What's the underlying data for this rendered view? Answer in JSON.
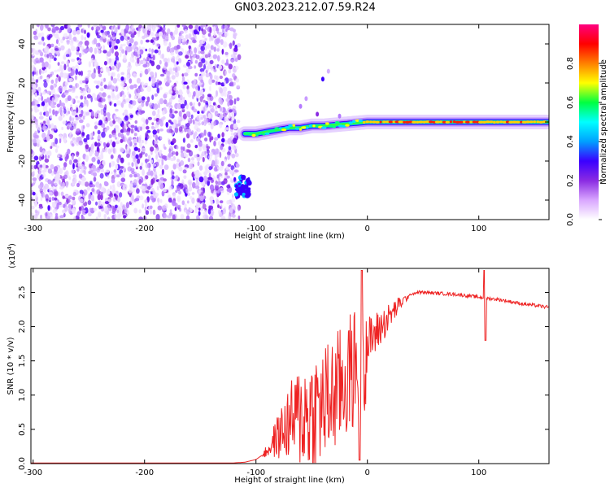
{
  "title": "GN03.2023.212.07.59.R24",
  "chart_data": [
    {
      "type": "heatmap",
      "xlabel": "Height of straight line (km)",
      "ylabel": "Frequency (Hz)",
      "xlim": [
        -302,
        163
      ],
      "ylim": [
        -50,
        50
      ],
      "x_ticks": [
        -300,
        -200,
        -100,
        0,
        100
      ],
      "x_tick_labels": [
        "-300",
        "-200",
        "-100",
        "0",
        "100"
      ],
      "y_ticks": [
        -40,
        -20,
        0,
        20,
        40
      ],
      "y_tick_labels": [
        "-40",
        "-20",
        "0",
        "20",
        "40"
      ],
      "colorbar": {
        "label": "Normalized spectral amplitude",
        "range": [
          0,
          1
        ],
        "ticks": [
          0.0,
          0.2,
          0.4,
          0.6,
          0.8
        ],
        "tick_labels": [
          "0.0",
          "0.2",
          "0.4",
          "0.6",
          "0.8"
        ],
        "colors": [
          "#ffffff",
          "#d9a6ff",
          "#8a2be2",
          "#3a00ff",
          "#00a0ff",
          "#00ffff",
          "#00ff40",
          "#ffff00",
          "#ff8000",
          "#ff0000",
          "#ff0080"
        ]
      },
      "noise_region_x": [
        -302,
        -115
      ],
      "signal_track": [
        {
          "x": -110,
          "y": -6
        },
        {
          "x": -100,
          "y": -6
        },
        {
          "x": -90,
          "y": -5
        },
        {
          "x": -80,
          "y": -4
        },
        {
          "x": -70,
          "y": -3
        },
        {
          "x": -60,
          "y": -3
        },
        {
          "x": -50,
          "y": -2
        },
        {
          "x": -40,
          "y": -2
        },
        {
          "x": -30,
          "y": -1.5
        },
        {
          "x": -20,
          "y": -1
        },
        {
          "x": -10,
          "y": -0.5
        },
        {
          "x": 0,
          "y": 0
        },
        {
          "x": 50,
          "y": 0
        },
        {
          "x": 100,
          "y": 0
        },
        {
          "x": 163,
          "y": 0
        }
      ]
    },
    {
      "type": "line",
      "xlabel": "Height of straight line (km)",
      "ylabel": "SNR (10 * v/v)",
      "y_multiplier": "(x10",
      "y_multiplier_exp": "4",
      "xlim": [
        -302,
        163
      ],
      "ylim": [
        0,
        2.85
      ],
      "x_ticks": [
        -300,
        -200,
        -100,
        0,
        100
      ],
      "x_tick_labels": [
        "-300",
        "-200",
        "-100",
        "0",
        "100"
      ],
      "y_ticks": [
        0,
        0.5,
        1.0,
        1.5,
        2.0,
        2.5
      ],
      "y_tick_labels": [
        "0.0",
        "0.5",
        "1.0",
        "1.5",
        "2.0",
        "2.5"
      ],
      "series": [
        {
          "color": "#ee2222",
          "points": [
            [
              -302,
              0.01
            ],
            [
              -250,
              0.01
            ],
            [
              -200,
              0.01
            ],
            [
              -150,
              0.01
            ],
            [
              -120,
              0.01
            ],
            [
              -110,
              0.02
            ],
            [
              -100,
              0.06
            ],
            [
              -92,
              0.15
            ],
            [
              -85,
              0.3
            ],
            [
              -80,
              0.4
            ],
            [
              -75,
              0.5
            ],
            [
              -70,
              0.6
            ],
            [
              -60,
              0.7
            ],
            [
              -50,
              0.75
            ],
            [
              -40,
              0.85
            ],
            [
              -30,
              1.0
            ],
            [
              -20,
              1.2
            ],
            [
              -10,
              1.45
            ],
            [
              -5,
              1.6
            ],
            [
              0,
              1.75
            ],
            [
              10,
              1.95
            ],
            [
              20,
              2.15
            ],
            [
              30,
              2.35
            ],
            [
              40,
              2.48
            ],
            [
              45,
              2.5
            ],
            [
              50,
              2.5
            ],
            [
              60,
              2.49
            ],
            [
              70,
              2.48
            ],
            [
              80,
              2.47
            ],
            [
              90,
              2.45
            ],
            [
              100,
              2.43
            ],
            [
              110,
              2.41
            ],
            [
              120,
              2.39
            ],
            [
              130,
              2.36
            ],
            [
              140,
              2.33
            ],
            [
              150,
              2.31
            ],
            [
              163,
              2.28
            ]
          ]
        }
      ]
    }
  ]
}
